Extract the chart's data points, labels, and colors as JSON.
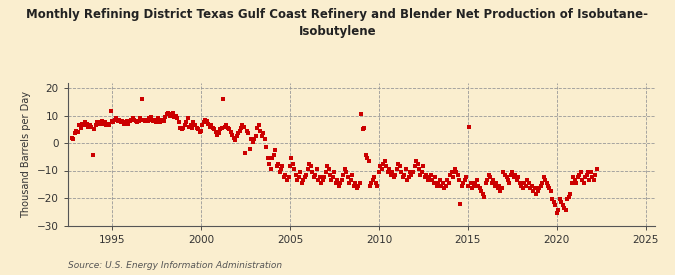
{
  "title": "Monthly Refining District Texas Gulf Coast Refinery and Blender Net Production of Isobutane-\nIsobutylene",
  "ylabel": "Thousand Barrels per Day",
  "source": "Source: U.S. Energy Information Administration",
  "background_color": "#faeecf",
  "marker_color": "#cc0000",
  "xlim": [
    1992.5,
    2025.5
  ],
  "ylim": [
    -30,
    22
  ],
  "yticks": [
    -30,
    -20,
    -10,
    0,
    10,
    20
  ],
  "xticks": [
    1995,
    2000,
    2005,
    2010,
    2015,
    2020,
    2025
  ],
  "data_points": [
    [
      1992.75,
      2.0
    ],
    [
      1992.83,
      1.5
    ],
    [
      1992.92,
      3.5
    ],
    [
      1993.0,
      4.5
    ],
    [
      1993.08,
      4.0
    ],
    [
      1993.17,
      6.5
    ],
    [
      1993.25,
      5.5
    ],
    [
      1993.33,
      7.0
    ],
    [
      1993.42,
      6.5
    ],
    [
      1993.5,
      7.5
    ],
    [
      1993.58,
      7.0
    ],
    [
      1993.67,
      6.0
    ],
    [
      1993.75,
      6.5
    ],
    [
      1993.83,
      6.0
    ],
    [
      1993.92,
      -4.5
    ],
    [
      1994.0,
      5.0
    ],
    [
      1994.08,
      6.5
    ],
    [
      1994.17,
      7.5
    ],
    [
      1994.25,
      7.0
    ],
    [
      1994.33,
      7.5
    ],
    [
      1994.42,
      8.0
    ],
    [
      1994.5,
      7.0
    ],
    [
      1994.58,
      7.5
    ],
    [
      1994.67,
      6.5
    ],
    [
      1994.75,
      7.0
    ],
    [
      1994.83,
      6.5
    ],
    [
      1994.92,
      11.5
    ],
    [
      1995.0,
      8.0
    ],
    [
      1995.08,
      7.5
    ],
    [
      1995.17,
      8.5
    ],
    [
      1995.25,
      9.0
    ],
    [
      1995.33,
      8.0
    ],
    [
      1995.42,
      8.5
    ],
    [
      1995.5,
      7.5
    ],
    [
      1995.58,
      8.0
    ],
    [
      1995.67,
      7.0
    ],
    [
      1995.75,
      7.5
    ],
    [
      1995.83,
      8.0
    ],
    [
      1995.92,
      7.0
    ],
    [
      1996.0,
      8.0
    ],
    [
      1996.08,
      8.5
    ],
    [
      1996.17,
      9.0
    ],
    [
      1996.25,
      8.5
    ],
    [
      1996.33,
      8.0
    ],
    [
      1996.42,
      7.5
    ],
    [
      1996.5,
      8.0
    ],
    [
      1996.58,
      9.0
    ],
    [
      1996.67,
      16.0
    ],
    [
      1996.75,
      8.5
    ],
    [
      1996.83,
      8.0
    ],
    [
      1996.92,
      8.5
    ],
    [
      1997.0,
      8.0
    ],
    [
      1997.08,
      9.0
    ],
    [
      1997.17,
      9.5
    ],
    [
      1997.25,
      8.5
    ],
    [
      1997.33,
      8.0
    ],
    [
      1997.42,
      8.5
    ],
    [
      1997.5,
      7.5
    ],
    [
      1997.58,
      9.0
    ],
    [
      1997.67,
      7.5
    ],
    [
      1997.75,
      8.0
    ],
    [
      1997.83,
      8.5
    ],
    [
      1997.92,
      8.0
    ],
    [
      1998.0,
      9.5
    ],
    [
      1998.08,
      10.5
    ],
    [
      1998.17,
      11.0
    ],
    [
      1998.25,
      10.0
    ],
    [
      1998.33,
      10.5
    ],
    [
      1998.42,
      11.0
    ],
    [
      1998.5,
      9.5
    ],
    [
      1998.58,
      10.0
    ],
    [
      1998.67,
      9.0
    ],
    [
      1998.75,
      7.5
    ],
    [
      1998.83,
      5.5
    ],
    [
      1998.92,
      5.0
    ],
    [
      1999.0,
      5.5
    ],
    [
      1999.08,
      6.5
    ],
    [
      1999.17,
      7.5
    ],
    [
      1999.25,
      9.0
    ],
    [
      1999.33,
      6.0
    ],
    [
      1999.42,
      6.5
    ],
    [
      1999.5,
      5.5
    ],
    [
      1999.58,
      7.5
    ],
    [
      1999.67,
      6.5
    ],
    [
      1999.75,
      5.5
    ],
    [
      1999.83,
      5.0
    ],
    [
      1999.92,
      4.0
    ],
    [
      2000.0,
      4.5
    ],
    [
      2000.08,
      6.5
    ],
    [
      2000.17,
      7.5
    ],
    [
      2000.25,
      8.5
    ],
    [
      2000.33,
      8.0
    ],
    [
      2000.42,
      7.0
    ],
    [
      2000.5,
      6.0
    ],
    [
      2000.58,
      6.5
    ],
    [
      2000.67,
      5.5
    ],
    [
      2000.75,
      5.0
    ],
    [
      2000.83,
      4.0
    ],
    [
      2000.92,
      3.0
    ],
    [
      2001.0,
      3.5
    ],
    [
      2001.08,
      5.0
    ],
    [
      2001.17,
      5.5
    ],
    [
      2001.25,
      16.0
    ],
    [
      2001.33,
      6.0
    ],
    [
      2001.42,
      6.5
    ],
    [
      2001.5,
      5.5
    ],
    [
      2001.58,
      5.0
    ],
    [
      2001.67,
      4.0
    ],
    [
      2001.75,
      3.0
    ],
    [
      2001.83,
      2.0
    ],
    [
      2001.92,
      1.0
    ],
    [
      2002.0,
      2.5
    ],
    [
      2002.08,
      3.5
    ],
    [
      2002.17,
      4.5
    ],
    [
      2002.25,
      5.5
    ],
    [
      2002.33,
      6.5
    ],
    [
      2002.42,
      6.0
    ],
    [
      2002.5,
      -3.5
    ],
    [
      2002.58,
      4.5
    ],
    [
      2002.67,
      3.5
    ],
    [
      2002.75,
      -2.0
    ],
    [
      2002.83,
      1.5
    ],
    [
      2002.92,
      0.5
    ],
    [
      2003.0,
      1.5
    ],
    [
      2003.08,
      2.5
    ],
    [
      2003.17,
      5.5
    ],
    [
      2003.25,
      6.5
    ],
    [
      2003.33,
      4.5
    ],
    [
      2003.42,
      2.5
    ],
    [
      2003.5,
      3.5
    ],
    [
      2003.58,
      1.5
    ],
    [
      2003.67,
      -1.5
    ],
    [
      2003.75,
      -5.5
    ],
    [
      2003.83,
      -7.5
    ],
    [
      2003.92,
      -9.5
    ],
    [
      2004.0,
      -5.5
    ],
    [
      2004.08,
      -4.5
    ],
    [
      2004.17,
      -2.5
    ],
    [
      2004.25,
      -8.5
    ],
    [
      2004.33,
      -7.5
    ],
    [
      2004.42,
      -10.5
    ],
    [
      2004.5,
      -9.5
    ],
    [
      2004.58,
      -8.5
    ],
    [
      2004.67,
      -12.5
    ],
    [
      2004.75,
      -11.5
    ],
    [
      2004.83,
      -13.5
    ],
    [
      2004.92,
      -12.5
    ],
    [
      2005.0,
      -8.5
    ],
    [
      2005.08,
      -5.5
    ],
    [
      2005.17,
      -7.5
    ],
    [
      2005.25,
      -9.5
    ],
    [
      2005.33,
      -11.5
    ],
    [
      2005.42,
      -13.5
    ],
    [
      2005.5,
      -12.5
    ],
    [
      2005.58,
      -10.5
    ],
    [
      2005.67,
      -14.5
    ],
    [
      2005.75,
      -13.5
    ],
    [
      2005.83,
      -12.5
    ],
    [
      2005.92,
      -11.5
    ],
    [
      2006.0,
      -9.5
    ],
    [
      2006.08,
      -7.5
    ],
    [
      2006.17,
      -8.5
    ],
    [
      2006.25,
      -10.5
    ],
    [
      2006.33,
      -12.5
    ],
    [
      2006.42,
      -11.5
    ],
    [
      2006.5,
      -9.5
    ],
    [
      2006.58,
      -13.5
    ],
    [
      2006.67,
      -12.5
    ],
    [
      2006.75,
      -14.5
    ],
    [
      2006.83,
      -13.5
    ],
    [
      2006.92,
      -12.5
    ],
    [
      2007.0,
      -10.5
    ],
    [
      2007.08,
      -8.5
    ],
    [
      2007.17,
      -9.5
    ],
    [
      2007.25,
      -11.5
    ],
    [
      2007.33,
      -13.5
    ],
    [
      2007.42,
      -12.5
    ],
    [
      2007.5,
      -10.5
    ],
    [
      2007.58,
      -14.5
    ],
    [
      2007.67,
      -13.5
    ],
    [
      2007.75,
      -15.5
    ],
    [
      2007.83,
      -14.5
    ],
    [
      2007.92,
      -13.5
    ],
    [
      2008.0,
      -11.5
    ],
    [
      2008.08,
      -9.5
    ],
    [
      2008.17,
      -10.5
    ],
    [
      2008.25,
      -12.5
    ],
    [
      2008.33,
      -14.5
    ],
    [
      2008.42,
      -13.5
    ],
    [
      2008.5,
      -11.5
    ],
    [
      2008.58,
      -15.5
    ],
    [
      2008.67,
      -14.5
    ],
    [
      2008.75,
      -16.5
    ],
    [
      2008.83,
      -15.5
    ],
    [
      2008.92,
      -14.5
    ],
    [
      2009.0,
      10.5
    ],
    [
      2009.08,
      5.0
    ],
    [
      2009.17,
      5.5
    ],
    [
      2009.25,
      -4.5
    ],
    [
      2009.33,
      -5.5
    ],
    [
      2009.42,
      -6.5
    ],
    [
      2009.5,
      -15.5
    ],
    [
      2009.58,
      -14.5
    ],
    [
      2009.67,
      -13.5
    ],
    [
      2009.75,
      -12.5
    ],
    [
      2009.83,
      -14.5
    ],
    [
      2009.92,
      -15.5
    ],
    [
      2010.0,
      -10.5
    ],
    [
      2010.08,
      -8.5
    ],
    [
      2010.17,
      -9.5
    ],
    [
      2010.25,
      -7.5
    ],
    [
      2010.33,
      -6.5
    ],
    [
      2010.42,
      -8.5
    ],
    [
      2010.5,
      -10.5
    ],
    [
      2010.58,
      -9.5
    ],
    [
      2010.67,
      -11.5
    ],
    [
      2010.75,
      -10.5
    ],
    [
      2010.83,
      -12.5
    ],
    [
      2010.92,
      -11.5
    ],
    [
      2011.0,
      -9.5
    ],
    [
      2011.08,
      -7.5
    ],
    [
      2011.17,
      -8.5
    ],
    [
      2011.25,
      -10.5
    ],
    [
      2011.33,
      -12.5
    ],
    [
      2011.42,
      -11.5
    ],
    [
      2011.5,
      -9.5
    ],
    [
      2011.58,
      -13.5
    ],
    [
      2011.67,
      -12.5
    ],
    [
      2011.75,
      -10.5
    ],
    [
      2011.83,
      -11.5
    ],
    [
      2011.92,
      -10.5
    ],
    [
      2012.0,
      -8.5
    ],
    [
      2012.08,
      -6.5
    ],
    [
      2012.17,
      -7.5
    ],
    [
      2012.25,
      -9.5
    ],
    [
      2012.33,
      -11.5
    ],
    [
      2012.42,
      -10.5
    ],
    [
      2012.5,
      -8.5
    ],
    [
      2012.58,
      -12.5
    ],
    [
      2012.67,
      -11.5
    ],
    [
      2012.75,
      -13.5
    ],
    [
      2012.83,
      -12.5
    ],
    [
      2012.92,
      -11.5
    ],
    [
      2013.0,
      -13.5
    ],
    [
      2013.08,
      -14.5
    ],
    [
      2013.17,
      -12.5
    ],
    [
      2013.25,
      -15.5
    ],
    [
      2013.33,
      -14.5
    ],
    [
      2013.42,
      -13.5
    ],
    [
      2013.5,
      -15.5
    ],
    [
      2013.58,
      -14.5
    ],
    [
      2013.67,
      -16.5
    ],
    [
      2013.75,
      -15.5
    ],
    [
      2013.83,
      -13.5
    ],
    [
      2013.92,
      -14.5
    ],
    [
      2014.0,
      -11.5
    ],
    [
      2014.08,
      -10.5
    ],
    [
      2014.17,
      -12.5
    ],
    [
      2014.25,
      -9.5
    ],
    [
      2014.33,
      -10.5
    ],
    [
      2014.42,
      -11.5
    ],
    [
      2014.5,
      -13.5
    ],
    [
      2014.58,
      -22.0
    ],
    [
      2014.67,
      -15.5
    ],
    [
      2014.75,
      -14.5
    ],
    [
      2014.83,
      -13.5
    ],
    [
      2014.92,
      -12.5
    ],
    [
      2015.0,
      -15.5
    ],
    [
      2015.08,
      6.0
    ],
    [
      2015.17,
      -14.5
    ],
    [
      2015.25,
      -16.5
    ],
    [
      2015.33,
      -15.5
    ],
    [
      2015.42,
      -14.5
    ],
    [
      2015.5,
      -13.5
    ],
    [
      2015.58,
      -15.5
    ],
    [
      2015.67,
      -16.5
    ],
    [
      2015.75,
      -17.5
    ],
    [
      2015.83,
      -18.5
    ],
    [
      2015.92,
      -19.5
    ],
    [
      2016.0,
      -14.5
    ],
    [
      2016.08,
      -13.5
    ],
    [
      2016.17,
      -11.5
    ],
    [
      2016.25,
      -12.5
    ],
    [
      2016.33,
      -14.5
    ],
    [
      2016.42,
      -13.5
    ],
    [
      2016.5,
      -15.5
    ],
    [
      2016.58,
      -14.5
    ],
    [
      2016.67,
      -16.5
    ],
    [
      2016.75,
      -15.5
    ],
    [
      2016.83,
      -17.5
    ],
    [
      2016.92,
      -16.5
    ],
    [
      2017.0,
      -10.5
    ],
    [
      2017.08,
      -11.5
    ],
    [
      2017.17,
      -12.5
    ],
    [
      2017.25,
      -13.5
    ],
    [
      2017.33,
      -14.5
    ],
    [
      2017.42,
      -11.5
    ],
    [
      2017.5,
      -10.5
    ],
    [
      2017.58,
      -12.5
    ],
    [
      2017.67,
      -11.5
    ],
    [
      2017.75,
      -13.5
    ],
    [
      2017.83,
      -12.5
    ],
    [
      2017.92,
      -14.5
    ],
    [
      2018.0,
      -15.5
    ],
    [
      2018.08,
      -16.5
    ],
    [
      2018.17,
      -14.5
    ],
    [
      2018.25,
      -15.5
    ],
    [
      2018.33,
      -13.5
    ],
    [
      2018.42,
      -14.5
    ],
    [
      2018.5,
      -16.5
    ],
    [
      2018.58,
      -15.5
    ],
    [
      2018.67,
      -17.5
    ],
    [
      2018.75,
      -16.5
    ],
    [
      2018.83,
      -18.5
    ],
    [
      2018.92,
      -17.5
    ],
    [
      2019.0,
      -16.5
    ],
    [
      2019.08,
      -15.5
    ],
    [
      2019.17,
      -14.5
    ],
    [
      2019.25,
      -12.5
    ],
    [
      2019.33,
      -13.5
    ],
    [
      2019.42,
      -14.5
    ],
    [
      2019.5,
      -15.5
    ],
    [
      2019.58,
      -16.5
    ],
    [
      2019.67,
      -17.5
    ],
    [
      2019.75,
      -20.5
    ],
    [
      2019.83,
      -21.5
    ],
    [
      2019.92,
      -22.5
    ],
    [
      2020.0,
      -25.5
    ],
    [
      2020.08,
      -24.5
    ],
    [
      2020.17,
      -20.5
    ],
    [
      2020.25,
      -21.5
    ],
    [
      2020.33,
      -22.5
    ],
    [
      2020.42,
      -23.5
    ],
    [
      2020.5,
      -24.5
    ],
    [
      2020.58,
      -20.5
    ],
    [
      2020.67,
      -19.5
    ],
    [
      2020.75,
      -18.5
    ],
    [
      2020.83,
      -14.5
    ],
    [
      2020.92,
      -12.5
    ],
    [
      2021.0,
      -13.5
    ],
    [
      2021.08,
      -14.5
    ],
    [
      2021.17,
      -12.5
    ],
    [
      2021.25,
      -11.5
    ],
    [
      2021.33,
      -10.5
    ],
    [
      2021.42,
      -13.5
    ],
    [
      2021.5,
      -14.5
    ],
    [
      2021.58,
      -12.5
    ],
    [
      2021.67,
      -11.5
    ],
    [
      2021.75,
      -10.5
    ],
    [
      2021.83,
      -13.5
    ],
    [
      2021.92,
      -10.5
    ],
    [
      2022.0,
      -12.5
    ],
    [
      2022.08,
      -13.5
    ],
    [
      2022.17,
      -11.5
    ],
    [
      2022.25,
      -9.5
    ]
  ]
}
